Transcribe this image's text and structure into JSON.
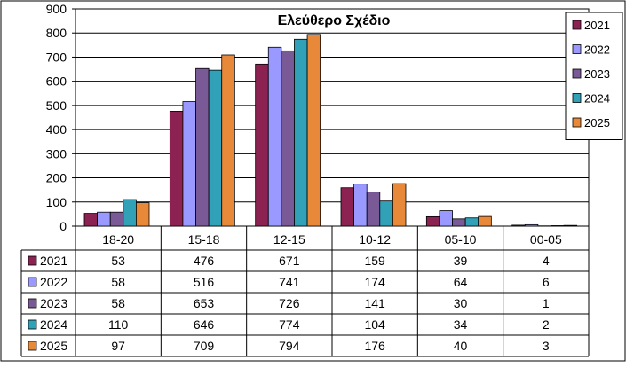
{
  "chart_data": {
    "type": "bar",
    "title": "Ελεύθερο Σχέδιο",
    "xlabel": "",
    "ylabel": "",
    "ylim": [
      0,
      900
    ],
    "yticks": [
      0,
      100,
      200,
      300,
      400,
      500,
      600,
      700,
      800,
      900
    ],
    "grid": true,
    "legend_position": "top-right",
    "categories": [
      "18-20",
      "15-18",
      "12-15",
      "10-12",
      "05-10",
      "00-05"
    ],
    "series": [
      {
        "name": "2021",
        "color": "#8B2252",
        "values": [
          53,
          476,
          671,
          159,
          39,
          4
        ]
      },
      {
        "name": "2022",
        "color": "#9999FF",
        "values": [
          58,
          516,
          741,
          174,
          64,
          6
        ]
      },
      {
        "name": "2023",
        "color": "#7A5A96",
        "values": [
          58,
          653,
          726,
          141,
          30,
          1
        ]
      },
      {
        "name": "2024",
        "color": "#31A1B8",
        "values": [
          110,
          646,
          774,
          104,
          34,
          2
        ]
      },
      {
        "name": "2025",
        "color": "#E8893A",
        "values": [
          97,
          709,
          794,
          176,
          40,
          3
        ]
      }
    ],
    "data_table": true
  }
}
